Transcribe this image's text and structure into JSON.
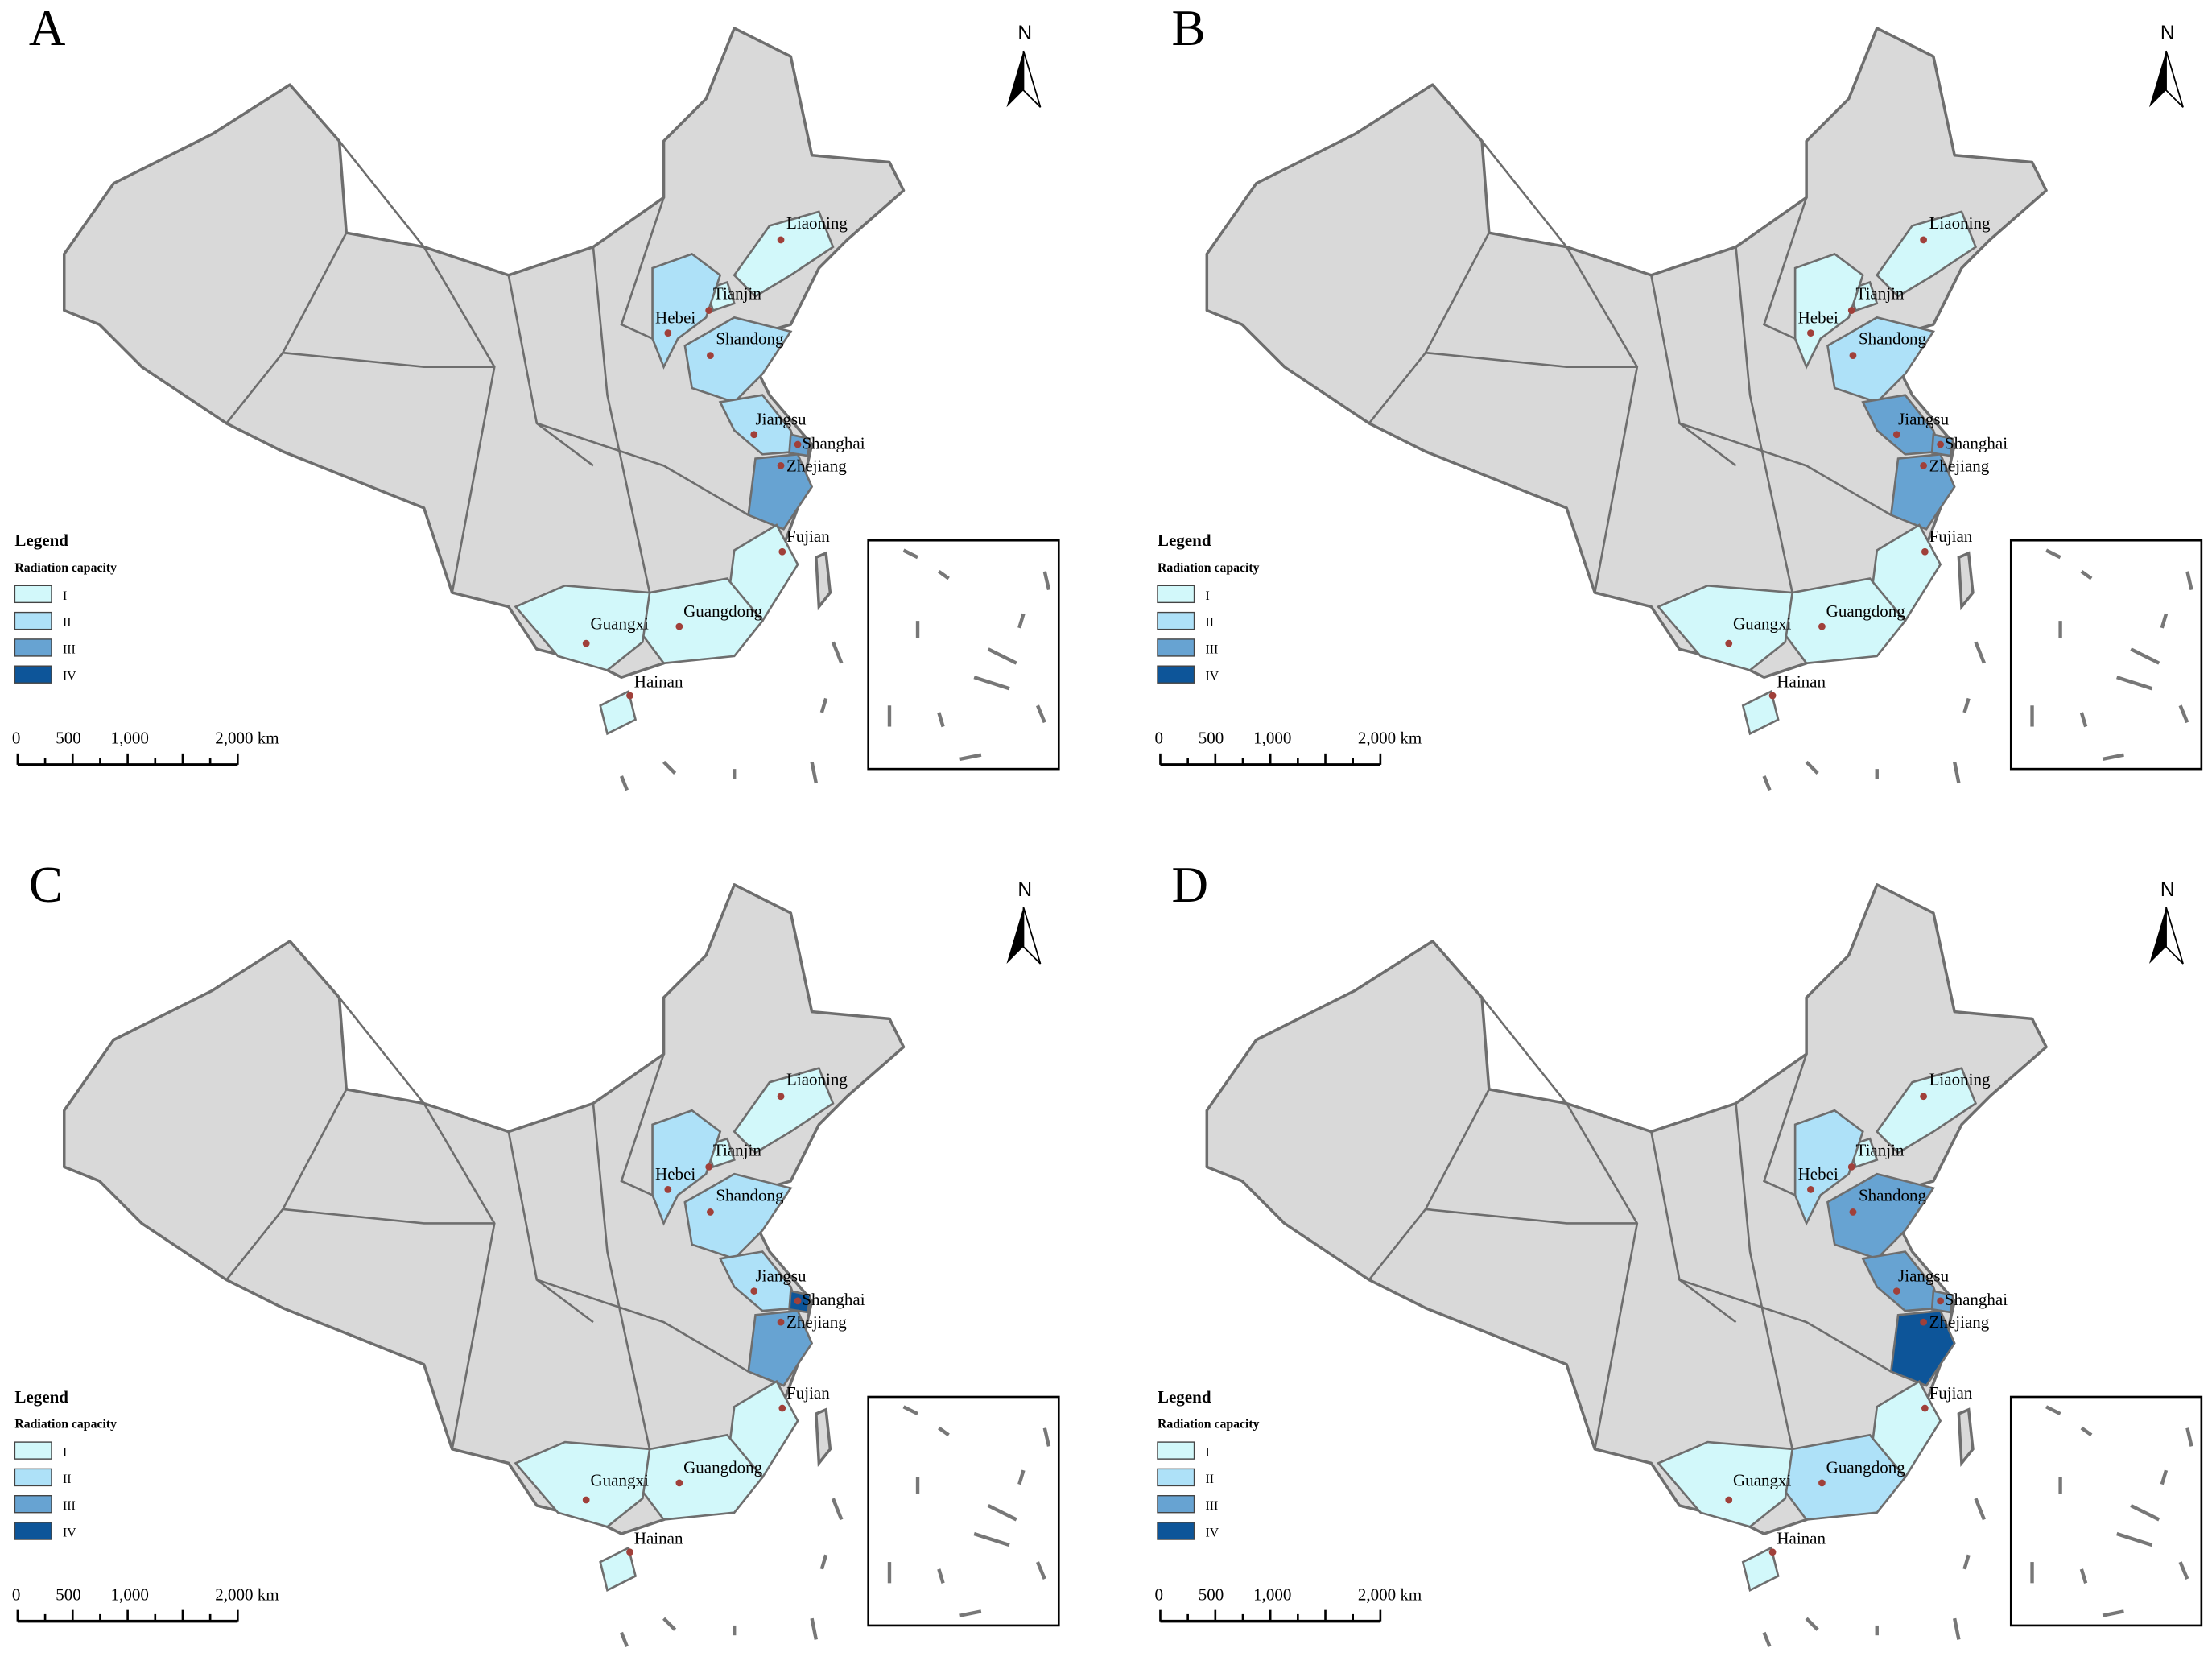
{
  "panels": [
    {
      "label": "A",
      "classes": [
        "I",
        "I",
        "II",
        "II",
        "II",
        "III",
        "III",
        "I",
        "I",
        "I",
        "I"
      ]
    },
    {
      "label": "B",
      "classes": [
        "I",
        "I",
        "I",
        "II",
        "III",
        "III",
        "III",
        "I",
        "I",
        "I",
        "I"
      ]
    },
    {
      "label": "C",
      "classes": [
        "I",
        "I",
        "II",
        "II",
        "II",
        "IV",
        "III",
        "I",
        "I",
        "I",
        "I"
      ]
    },
    {
      "label": "D",
      "classes": [
        "I",
        "I",
        "II",
        "III",
        "III",
        "III",
        "IV",
        "I",
        "II",
        "I",
        "I"
      ]
    }
  ],
  "provinces": [
    {
      "name": "Liaoning"
    },
    {
      "name": "Tianjin"
    },
    {
      "name": "Hebei"
    },
    {
      "name": "Shandong"
    },
    {
      "name": "Jiangsu"
    },
    {
      "name": "Shanghai"
    },
    {
      "name": "Zhejiang"
    },
    {
      "name": "Fujian"
    },
    {
      "name": "Guangdong"
    },
    {
      "name": "Guangxi"
    },
    {
      "name": "Hainan"
    }
  ],
  "legend": {
    "title": "Legend",
    "subtitle": "Radiation capacity",
    "classes": [
      {
        "label": "I",
        "color": "#d2f8fa"
      },
      {
        "label": "II",
        "color": "#aee1f8"
      },
      {
        "label": "III",
        "color": "#67a3d2"
      },
      {
        "label": "IV",
        "color": "#0d5599"
      }
    ]
  },
  "scale_bar": {
    "labels": [
      "0",
      "500",
      "1,000",
      "2,000 km"
    ]
  },
  "north": "N"
}
